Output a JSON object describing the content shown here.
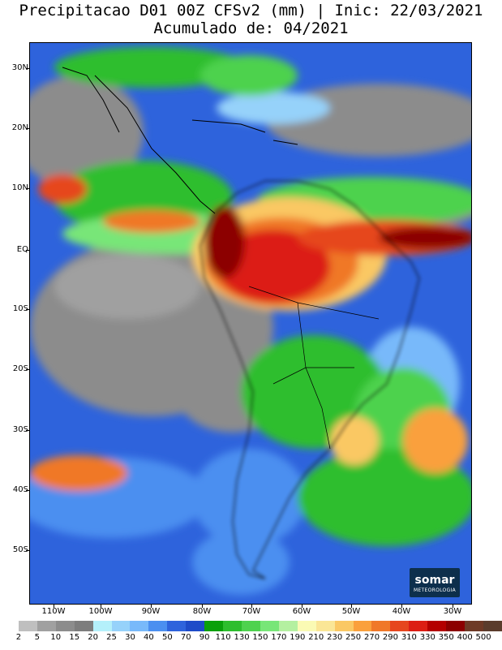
{
  "title": {
    "line1": "Precipitacao D01 00Z CFSv2 (mm) | Inic: 22/03/2021",
    "line2": "Acumulado de: 04/2021"
  },
  "map": {
    "lat_labels": [
      "30N",
      "20N",
      "10N",
      "EQ",
      "10S",
      "20S",
      "30S",
      "40S",
      "50S"
    ],
    "lon_labels": [
      "110W",
      "100W",
      "90W",
      "80W",
      "70W",
      "60W",
      "50W",
      "40W",
      "30W"
    ]
  },
  "logo": {
    "name": "somar",
    "subtitle": "METEOROLOGIA"
  },
  "colorbar": {
    "labels": [
      "2",
      "5",
      "10",
      "15",
      "20",
      "25",
      "30",
      "40",
      "50",
      "70",
      "90",
      "110",
      "130",
      "150",
      "170",
      "190",
      "210",
      "230",
      "250",
      "270",
      "290",
      "310",
      "330",
      "350",
      "400",
      "500"
    ],
    "colors": [
      "#ffffff",
      "#bfbfbf",
      "#a0a0a0",
      "#8c8c8c",
      "#7d7d7d",
      "#b4f0fa",
      "#96d2fa",
      "#78b9fa",
      "#4b8ff0",
      "#2e63dc",
      "#1e4bc8",
      "#0aa00a",
      "#2dbe2d",
      "#4ed24e",
      "#78e678",
      "#b4f0a0",
      "#fafab4",
      "#fae696",
      "#fac864",
      "#faa03c",
      "#f07828",
      "#e6461e",
      "#dc1e14",
      "#b40000",
      "#8c0000",
      "#6e3a26",
      "#5a3c2c"
    ]
  }
}
